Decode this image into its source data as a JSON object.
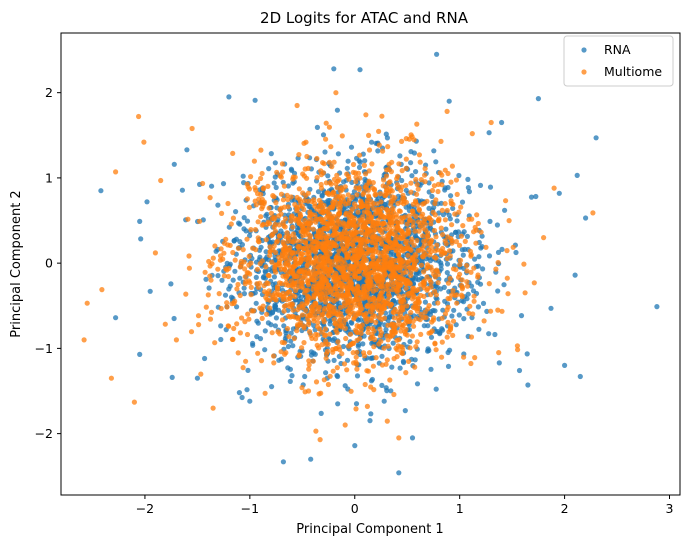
{
  "chart_data": {
    "type": "scatter",
    "title": "2D Logits for ATAC and RNA",
    "xlabel": "Principal Component 1",
    "ylabel": "Principal Component 2",
    "xlim": [
      -2.8,
      3.1
    ],
    "ylim": [
      -2.72,
      2.7
    ],
    "xticks": [
      -2,
      -1,
      0,
      1,
      2,
      3
    ],
    "yticks": [
      -2,
      -1,
      0,
      1,
      2
    ],
    "xtick_labels": [
      "−2",
      "−1",
      "0",
      "1",
      "2",
      "3"
    ],
    "ytick_labels": [
      "−2",
      "−1",
      "0",
      "1",
      "2"
    ],
    "grid": false,
    "legend_placement": "top-right",
    "series": [
      {
        "name": "RNA",
        "color": "#1f77b4",
        "points": [
          [
            2.88,
            -0.51
          ],
          [
            0.78,
            2.45
          ],
          [
            -0.2,
            2.28
          ],
          [
            0.05,
            2.27
          ],
          [
            -2.42,
            0.85
          ],
          [
            2.3,
            1.47
          ],
          [
            -2.28,
            -0.64
          ],
          [
            0.42,
            -2.46
          ],
          [
            -0.95,
            1.91
          ],
          [
            1.75,
            1.93
          ],
          [
            -1.98,
            0.72
          ],
          [
            -2.05,
            0.49
          ],
          [
            2.12,
            1.03
          ],
          [
            2.0,
            -1.2
          ],
          [
            2.15,
            -1.33
          ],
          [
            1.87,
            -0.53
          ],
          [
            -1.6,
            1.33
          ],
          [
            -0.68,
            -2.33
          ],
          [
            -0.42,
            -2.3
          ],
          [
            1.57,
            -1.26
          ],
          [
            1.65,
            -1.43
          ],
          [
            0.0,
            -2.14
          ],
          [
            0.9,
            1.9
          ],
          [
            1.4,
            1.65
          ],
          [
            -1.2,
            1.95
          ],
          [
            -1.95,
            -0.33
          ],
          [
            -2.05,
            -1.07
          ],
          [
            -1.74,
            -1.34
          ],
          [
            2.2,
            0.53
          ],
          [
            2.1,
            -0.14
          ],
          [
            -1.72,
            1.16
          ],
          [
            1.95,
            0.82
          ],
          [
            -1.5,
            -1.35
          ],
          [
            1.28,
            1.53
          ],
          [
            -1.0,
            -1.62
          ],
          [
            0.55,
            -2.05
          ]
        ]
      },
      {
        "name": "Multiome",
        "color": "#ff7f0e",
        "points": [
          [
            -2.55,
            -0.47
          ],
          [
            -2.58,
            -0.9
          ],
          [
            -2.32,
            -1.35
          ],
          [
            -2.1,
            -1.63
          ],
          [
            -2.28,
            1.07
          ],
          [
            -2.06,
            1.72
          ],
          [
            -2.01,
            1.42
          ],
          [
            -1.85,
            0.97
          ],
          [
            -2.41,
            -0.31
          ],
          [
            2.27,
            0.59
          ],
          [
            -0.37,
            -1.97
          ],
          [
            -0.33,
            -2.07
          ],
          [
            0.42,
            -2.05
          ],
          [
            1.9,
            0.88
          ],
          [
            1.3,
            1.65
          ],
          [
            -1.35,
            -1.7
          ],
          [
            -0.55,
            1.85
          ],
          [
            1.12,
            1.52
          ],
          [
            1.55,
            -0.97
          ],
          [
            -1.55,
            1.58
          ],
          [
            0.12,
            -1.68
          ],
          [
            -1.9,
            0.12
          ],
          [
            1.8,
            0.3
          ],
          [
            -0.18,
            2.0
          ],
          [
            0.88,
            1.78
          ],
          [
            -1.7,
            -0.9
          ]
        ]
      }
    ],
    "dense_cloud": {
      "note": "Dense cloud of several thousand points per series centered near (0, 0) with standard deviation about 0.55 in both components.",
      "center": [
        0,
        0
      ],
      "std": [
        0.55,
        0.55
      ],
      "count_per_series": 2200
    }
  }
}
